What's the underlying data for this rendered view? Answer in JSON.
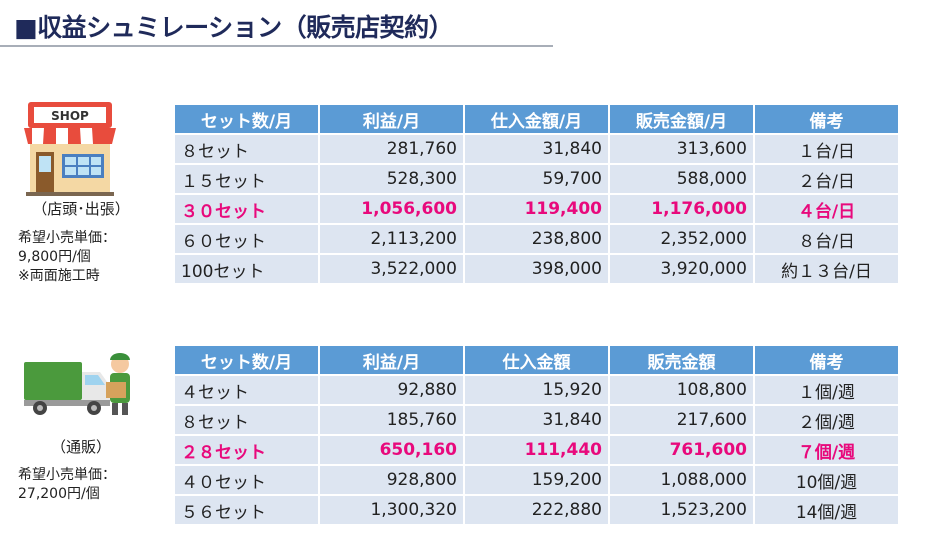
{
  "title": "■収益シュミレーション（販売店契約）",
  "shop": {
    "sign": "SHOP",
    "caption": "（店頭･出張）",
    "price_line1": "希望小売単価：",
    "price_line2": "9,800円/個",
    "price_line3": "※両面施工時"
  },
  "mail": {
    "caption": "（通販）",
    "price_line1": "希望小売単価：",
    "price_line2": "27,200円/個"
  },
  "table1": {
    "headers": [
      "セット数/月",
      "利益/月",
      "仕入金額/月",
      "販売金額/月",
      "備考"
    ],
    "rows": [
      [
        "８セット",
        "281,760",
        "31,840",
        "313,600",
        "１台/日"
      ],
      [
        "１５セット",
        "528,300",
        "59,700",
        "588,000",
        "２台/日"
      ],
      [
        "３０セット",
        "1,056,600",
        "119,400",
        "1,176,000",
        "４台/日"
      ],
      [
        "６０セット",
        "2,113,200",
        "238,800",
        "2,352,000",
        "８台/日"
      ],
      [
        "100セット",
        "3,522,000",
        "398,000",
        "3,920,000",
        "約１３台/日"
      ]
    ],
    "highlight_row": 2
  },
  "table2": {
    "headers": [
      "セット数/月",
      "利益/月",
      "仕入金額",
      "販売金額",
      "備考"
    ],
    "rows": [
      [
        "４セット",
        "92,880",
        "15,920",
        "108,800",
        "１個/週"
      ],
      [
        "８セット",
        "185,760",
        "31,840",
        "217,600",
        "２個/週"
      ],
      [
        "２８セット",
        "650,160",
        "111,440",
        "761,600",
        "７個/週"
      ],
      [
        "４０セット",
        "928,800",
        "159,200",
        "1,088,000",
        "10個/週"
      ],
      [
        "５６セット",
        "1,300,320",
        "222,880",
        "1,523,200",
        "14個/週"
      ]
    ],
    "highlight_row": 2
  },
  "colors": {
    "header": "#5b9bd5",
    "row": "#dde5f1",
    "highlight": "#e8097c",
    "title": "#1f2a5a"
  }
}
